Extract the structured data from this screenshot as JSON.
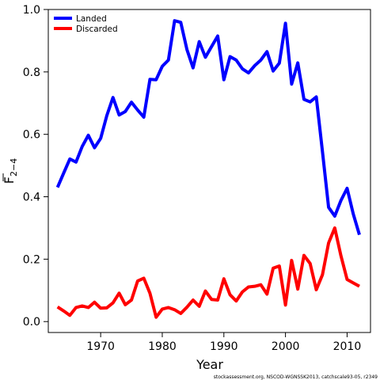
{
  "chart_data": {
    "type": "line",
    "xlabel": "Year",
    "ylabel": "F",
    "ylabel_subscript": "2−4",
    "xlim": [
      1961.5,
      2013.8
    ],
    "ylim": [
      -0.035,
      1.0
    ],
    "x_ticks": [
      1970,
      1980,
      1990,
      2000,
      2010
    ],
    "x_tick_labels": [
      "1970",
      "1980",
      "1990",
      "2000",
      "2010"
    ],
    "y_ticks": [
      0.0,
      0.2,
      0.4,
      0.6,
      0.8,
      1.0
    ],
    "y_tick_labels": [
      "0.0",
      "0.2",
      "0.4",
      "0.6",
      "0.8",
      "1.0"
    ],
    "legend_position": "top-left",
    "x": [
      1963,
      1964,
      1965,
      1966,
      1967,
      1968,
      1969,
      1970,
      1971,
      1972,
      1973,
      1974,
      1975,
      1976,
      1977,
      1978,
      1979,
      1980,
      1981,
      1982,
      1983,
      1984,
      1985,
      1986,
      1987,
      1988,
      1989,
      1990,
      1991,
      1992,
      1993,
      1994,
      1995,
      1996,
      1997,
      1998,
      1999,
      2000,
      2001,
      2002,
      2003,
      2004,
      2005,
      2006,
      2007,
      2008,
      2009,
      2010,
      2011,
      2012
    ],
    "series": [
      {
        "name": "Landed",
        "color": "#0000ff",
        "values": [
          0.43,
          0.476,
          0.521,
          0.511,
          0.561,
          0.597,
          0.557,
          0.587,
          0.66,
          0.718,
          0.662,
          0.673,
          0.703,
          0.678,
          0.655,
          0.776,
          0.775,
          0.818,
          0.838,
          0.964,
          0.959,
          0.872,
          0.813,
          0.897,
          0.847,
          0.881,
          0.915,
          0.775,
          0.849,
          0.838,
          0.81,
          0.797,
          0.82,
          0.838,
          0.865,
          0.803,
          0.828,
          0.956,
          0.761,
          0.829,
          0.712,
          0.704,
          0.72,
          0.545,
          0.366,
          0.338,
          0.388,
          0.427,
          0.345,
          0.278
        ]
      },
      {
        "name": "Discarded",
        "color": "#ff0000",
        "values": [
          0.047,
          0.034,
          0.02,
          0.045,
          0.05,
          0.045,
          0.062,
          0.043,
          0.044,
          0.06,
          0.091,
          0.054,
          0.069,
          0.13,
          0.139,
          0.091,
          0.014,
          0.04,
          0.045,
          0.038,
          0.026,
          0.046,
          0.069,
          0.049,
          0.098,
          0.071,
          0.069,
          0.137,
          0.086,
          0.066,
          0.095,
          0.111,
          0.113,
          0.118,
          0.088,
          0.171,
          0.178,
          0.053,
          0.196,
          0.104,
          0.212,
          0.186,
          0.102,
          0.15,
          0.252,
          0.3,
          0.211,
          0.135,
          0.124,
          0.113
        ]
      }
    ]
  },
  "footer_note": "stockassessment.org, NSCOD-WGNSSK2013, catchscale93-05, r2349"
}
